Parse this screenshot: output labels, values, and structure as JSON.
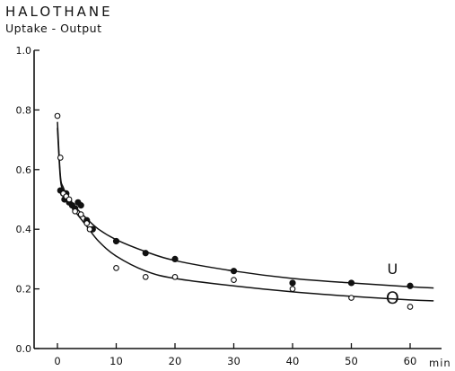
{
  "chart_data": {
    "type": "scatter",
    "title": "HALOTHANE",
    "subtitle": "Uptake - Output",
    "xlabel": "min",
    "ylabel": "",
    "xlim": [
      -4,
      68
    ],
    "ylim": [
      0,
      1.0
    ],
    "x_ticks": [
      0,
      10,
      20,
      30,
      40,
      50,
      60
    ],
    "y_ticks": [
      0.0,
      0.2,
      0.4,
      0.6,
      0.8,
      1.0
    ],
    "y_tick_labels": [
      "0.0",
      "0.2",
      "0.4",
      "0.6",
      "0.8",
      "1.0"
    ],
    "grid": false,
    "series": [
      {
        "name": "U",
        "marker": "filled-circle",
        "color": "#111111",
        "points": [
          {
            "x": 0.5,
            "y": 0.53
          },
          {
            "x": 1,
            "y": 0.52
          },
          {
            "x": 1.2,
            "y": 0.5
          },
          {
            "x": 1.5,
            "y": 0.52
          },
          {
            "x": 2,
            "y": 0.49
          },
          {
            "x": 2.5,
            "y": 0.48
          },
          {
            "x": 3,
            "y": 0.47
          },
          {
            "x": 3.5,
            "y": 0.49
          },
          {
            "x": 4,
            "y": 0.48
          },
          {
            "x": 5,
            "y": 0.43
          },
          {
            "x": 6,
            "y": 0.4
          },
          {
            "x": 10,
            "y": 0.36
          },
          {
            "x": 15,
            "y": 0.32
          },
          {
            "x": 20,
            "y": 0.3
          },
          {
            "x": 30,
            "y": 0.26
          },
          {
            "x": 40,
            "y": 0.22
          },
          {
            "x": 50,
            "y": 0.22
          },
          {
            "x": 60,
            "y": 0.21
          }
        ],
        "curve": [
          {
            "x": 0,
            "y": 0.76
          },
          {
            "x": 0.5,
            "y": 0.58
          },
          {
            "x": 1,
            "y": 0.54
          },
          {
            "x": 2,
            "y": 0.5
          },
          {
            "x": 3,
            "y": 0.475
          },
          {
            "x": 5,
            "y": 0.435
          },
          {
            "x": 7,
            "y": 0.4
          },
          {
            "x": 10,
            "y": 0.365
          },
          {
            "x": 15,
            "y": 0.325
          },
          {
            "x": 20,
            "y": 0.295
          },
          {
            "x": 30,
            "y": 0.26
          },
          {
            "x": 40,
            "y": 0.235
          },
          {
            "x": 50,
            "y": 0.22
          },
          {
            "x": 60,
            "y": 0.207
          },
          {
            "x": 64,
            "y": 0.203
          }
        ]
      },
      {
        "name": "O",
        "marker": "open-circle",
        "color": "#111111",
        "points": [
          {
            "x": 0,
            "y": 0.78
          },
          {
            "x": 0.5,
            "y": 0.64
          },
          {
            "x": 1,
            "y": 0.52
          },
          {
            "x": 1.5,
            "y": 0.51
          },
          {
            "x": 2,
            "y": 0.5
          },
          {
            "x": 3,
            "y": 0.46
          },
          {
            "x": 4,
            "y": 0.45
          },
          {
            "x": 5,
            "y": 0.42
          },
          {
            "x": 5.5,
            "y": 0.4
          },
          {
            "x": 10,
            "y": 0.27
          },
          {
            "x": 15,
            "y": 0.24
          },
          {
            "x": 20,
            "y": 0.24
          },
          {
            "x": 30,
            "y": 0.23
          },
          {
            "x": 40,
            "y": 0.2
          },
          {
            "x": 50,
            "y": 0.17
          },
          {
            "x": 60,
            "y": 0.14
          }
        ],
        "curve": [
          {
            "x": 0,
            "y": 0.74
          },
          {
            "x": 0.5,
            "y": 0.57
          },
          {
            "x": 1,
            "y": 0.53
          },
          {
            "x": 2,
            "y": 0.49
          },
          {
            "x": 3,
            "y": 0.46
          },
          {
            "x": 5,
            "y": 0.41
          },
          {
            "x": 7,
            "y": 0.36
          },
          {
            "x": 10,
            "y": 0.31
          },
          {
            "x": 15,
            "y": 0.26
          },
          {
            "x": 20,
            "y": 0.235
          },
          {
            "x": 30,
            "y": 0.21
          },
          {
            "x": 40,
            "y": 0.19
          },
          {
            "x": 50,
            "y": 0.175
          },
          {
            "x": 60,
            "y": 0.163
          },
          {
            "x": 64,
            "y": 0.16
          }
        ]
      }
    ],
    "annotations": [
      {
        "text": "U",
        "x": 57,
        "y": 0.25
      },
      {
        "text": "O",
        "x": 57,
        "y": 0.15
      }
    ]
  }
}
